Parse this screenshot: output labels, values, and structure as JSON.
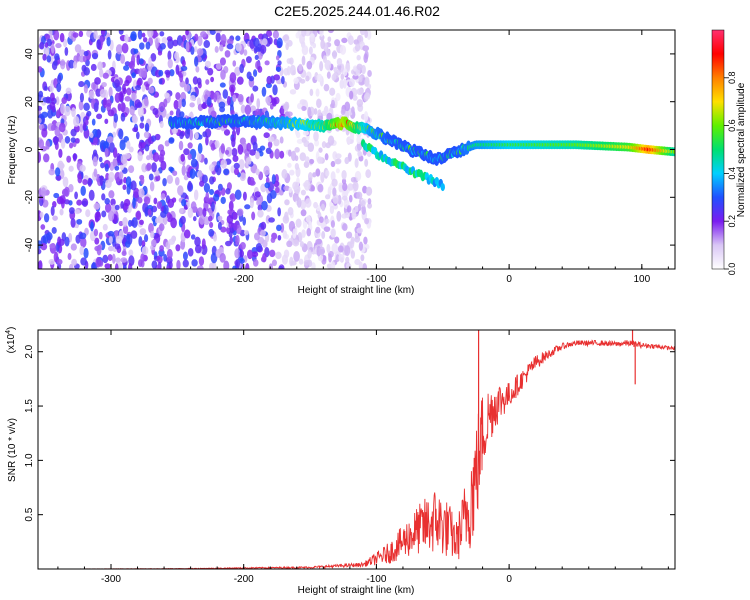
{
  "title": "C2E5.2025.244.01.46.R02",
  "chart_data": [
    {
      "type": "heatmap",
      "name": "spectrogram",
      "xlabel": "Height of straight line (km)",
      "ylabel": "Frequency (Hz)",
      "xlim": [
        -355,
        125
      ],
      "ylim": [
        -50,
        50
      ],
      "xticks": [
        -300,
        -200,
        -100,
        0,
        100
      ],
      "yticks": [
        -40,
        -20,
        0,
        20,
        40
      ],
      "colorbar": {
        "label": "Normalized spectral amplitude",
        "range": [
          0,
          1
        ],
        "ticks": [
          0.0,
          0.2,
          0.4,
          0.6,
          0.8
        ],
        "colors": [
          "#ffffff",
          "#d9c6f5",
          "#7a1cf0",
          "#2050ff",
          "#00d0ff",
          "#00e070",
          "#60f000",
          "#ffe000",
          "#ff8000",
          "#ff0000",
          "#ff3070"
        ]
      },
      "noise_region": {
        "x": [
          -355,
          -130
        ],
        "f": [
          -50,
          50
        ]
      },
      "ridge": [
        {
          "x": -255,
          "f": 11,
          "amp": 0.4
        },
        {
          "x": -200,
          "f": 12,
          "amp": 0.45
        },
        {
          "x": -170,
          "f": 11,
          "amp": 0.5
        },
        {
          "x": -140,
          "f": 10,
          "amp": 0.6
        },
        {
          "x": -125,
          "f": 11,
          "amp": 0.8
        },
        {
          "x": -105,
          "f": 8,
          "amp": 0.5
        },
        {
          "x": -90,
          "f": 4,
          "amp": 0.45
        },
        {
          "x": -75,
          "f": 0,
          "amp": 0.45
        },
        {
          "x": -55,
          "f": -4,
          "amp": 0.4
        },
        {
          "x": -40,
          "f": -1,
          "amp": 0.45
        },
        {
          "x": -25,
          "f": 2,
          "amp": 0.5
        },
        {
          "x": 0,
          "f": 2,
          "amp": 0.55
        },
        {
          "x": 50,
          "f": 2,
          "amp": 0.6
        },
        {
          "x": 90,
          "f": 1,
          "amp": 0.7
        },
        {
          "x": 105,
          "f": 0,
          "amp": 0.9
        },
        {
          "x": 125,
          "f": -1,
          "amp": 0.6
        }
      ],
      "secondary_branch": [
        {
          "x": -110,
          "f": 2,
          "amp": 0.35
        },
        {
          "x": -90,
          "f": -5,
          "amp": 0.35
        },
        {
          "x": -70,
          "f": -10,
          "amp": 0.35
        },
        {
          "x": -50,
          "f": -15,
          "amp": 0.3
        }
      ]
    },
    {
      "type": "line",
      "name": "snr",
      "xlabel": "Height of straight line (km)",
      "ylabel": "SNR (10 * v/v)",
      "scale_label": "(x10",
      "scale_exp": "4",
      "xlim": [
        -355,
        125
      ],
      "ylim": [
        0,
        22000
      ],
      "xticks": [
        -300,
        -200,
        -100,
        0
      ],
      "yticks": [
        5000,
        10000,
        15000,
        20000
      ],
      "ytick_labels": [
        "0.5",
        "1.0",
        "1.5",
        "2.0"
      ],
      "color": "#e83030",
      "series": [
        {
          "name": "SNR",
          "x": [
            -355,
            -250,
            -150,
            -110,
            -90,
            -70,
            -55,
            -45,
            -40,
            -35,
            -30,
            -25,
            -20,
            -15,
            -10,
            0,
            10,
            20,
            30,
            40,
            50,
            60,
            70,
            80,
            90,
            100,
            110,
            125
          ],
          "y": [
            0,
            30,
            150,
            400,
            1500,
            3500,
            4500,
            3500,
            2500,
            4000,
            6000,
            8500,
            12500,
            14200,
            15200,
            16000,
            17500,
            19000,
            19800,
            20500,
            20800,
            20800,
            20800,
            20700,
            20800,
            20600,
            20500,
            20300
          ],
          "noise_amp": [
            0,
            20,
            80,
            200,
            1000,
            2200,
            3200,
            2600,
            1800,
            3000,
            4500,
            5500,
            4000,
            2800,
            2200,
            1200,
            900,
            700,
            400,
            300,
            250,
            250,
            250,
            250,
            300,
            250,
            200,
            150
          ]
        }
      ],
      "spikes": [
        {
          "x": -23,
          "y": 22000
        },
        {
          "x": 93,
          "y": 22000
        },
        {
          "x": 95,
          "y": 17000
        }
      ]
    }
  ]
}
